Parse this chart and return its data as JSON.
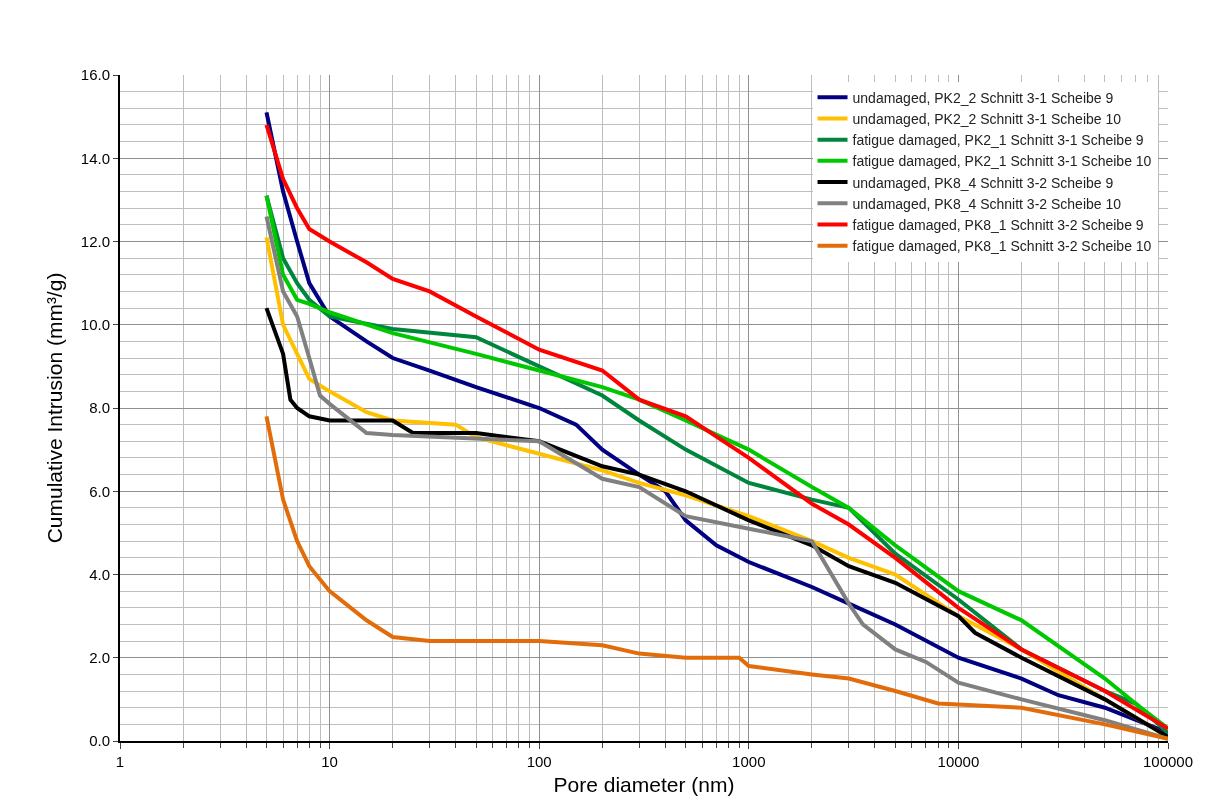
{
  "chart_data": {
    "type": "line",
    "xlabel": "Pore diameter (nm)",
    "ylabel": "Cumulative Intrusion (mm³/g)",
    "log": "x",
    "grid": true,
    "legend": "top right",
    "line_style": "solid",
    "marker": "none",
    "xlim": [
      1,
      100000
    ],
    "xticks": [
      1,
      10,
      100,
      1000,
      10000,
      100000
    ],
    "ylim": [
      0,
      16
    ],
    "yticks": [
      {
        "value": 0,
        "label": "0.0"
      },
      {
        "value": 2,
        "label": "2.0"
      },
      {
        "value": 4,
        "label": "4.0"
      },
      {
        "value": 6,
        "label": "6.0"
      },
      {
        "value": 8,
        "label": "8.0"
      },
      {
        "value": 10,
        "label": "10.0"
      },
      {
        "value": 12,
        "label": "12.0"
      },
      {
        "value": 14,
        "label": "14.0"
      },
      {
        "value": 16,
        "label": "16.0"
      }
    ],
    "series": [
      {
        "name": "undamaged, PK2_2 Schnitt 3-1 Scheibe 9",
        "color": "#000080",
        "x": [
          5,
          6,
          7,
          8,
          10,
          15,
          20,
          30,
          50,
          100,
          150,
          200,
          300,
          400,
          500,
          700,
          1000,
          2000,
          3000,
          5000,
          10000,
          20000,
          30000,
          50000,
          100000
        ],
        "values": [
          15.1,
          13.2,
          12.0,
          11.0,
          10.2,
          9.6,
          9.2,
          8.9,
          8.5,
          8.0,
          7.6,
          7.0,
          6.4,
          6.0,
          5.3,
          4.7,
          4.3,
          3.7,
          3.3,
          2.8,
          2.0,
          1.5,
          1.1,
          0.8,
          0.2
        ]
      },
      {
        "name": "undamaged, PK2_2 Schnitt 3-1 Scheibe 10",
        "color": "#ffc000",
        "x": [
          5,
          6,
          7,
          8,
          10,
          15,
          20,
          40,
          50,
          100,
          200,
          300,
          500,
          1000,
          2000,
          3000,
          5000,
          10000,
          20000,
          50000,
          100000
        ],
        "values": [
          12.1,
          10.0,
          9.3,
          8.7,
          8.4,
          7.9,
          7.7,
          7.6,
          7.3,
          6.9,
          6.5,
          6.2,
          5.9,
          5.4,
          4.8,
          4.4,
          4.0,
          3.0,
          2.2,
          1.0,
          0.1
        ]
      },
      {
        "name": "fatigue damaged, PK2_1 Schnitt 3-1 Scheibe 9",
        "color": "#00863c",
        "x": [
          5,
          6,
          7,
          8,
          10,
          20,
          50,
          100,
          200,
          300,
          500,
          1000,
          2000,
          3000,
          5000,
          10000,
          20000,
          50000,
          70000,
          100000
        ],
        "values": [
          13.1,
          11.6,
          11.0,
          10.6,
          10.2,
          9.9,
          9.7,
          9.0,
          8.3,
          7.7,
          7.0,
          6.2,
          5.8,
          5.6,
          4.5,
          3.4,
          2.2,
          1.2,
          0.9,
          0.2
        ]
      },
      {
        "name": "fatigue damaged, PK2_1 Schnitt 3-1 Scheibe 10",
        "color": "#00c800",
        "x": [
          5,
          6,
          7,
          8,
          10,
          20,
          50,
          100,
          200,
          300,
          500,
          1000,
          2000,
          3000,
          5000,
          10000,
          20000,
          50000,
          70000,
          100000
        ],
        "values": [
          13.1,
          11.2,
          10.6,
          10.5,
          10.3,
          9.8,
          9.3,
          8.9,
          8.5,
          8.2,
          7.7,
          7.0,
          6.1,
          5.6,
          4.7,
          3.6,
          2.9,
          1.5,
          0.9,
          0.3
        ]
      },
      {
        "name": "undamaged, PK8_4 Schnitt 3-2 Scheibe 9",
        "color": "#000000",
        "x": [
          5,
          6,
          6.5,
          7,
          8,
          10,
          20,
          25,
          50,
          100,
          200,
          300,
          500,
          1000,
          2000,
          3000,
          5000,
          10000,
          12000,
          20000,
          50000,
          100000
        ],
        "values": [
          10.4,
          9.3,
          8.2,
          8.0,
          7.8,
          7.7,
          7.7,
          7.4,
          7.4,
          7.2,
          6.6,
          6.4,
          6.0,
          5.3,
          4.7,
          4.2,
          3.8,
          3.0,
          2.6,
          2.0,
          1.0,
          0.1
        ]
      },
      {
        "name": "undamaged, PK8_4 Schnitt 3-2 Scheibe 10",
        "color": "#808080",
        "x": [
          5,
          6,
          7,
          8,
          9,
          10,
          15,
          20,
          100,
          200,
          300,
          500,
          1000,
          2000,
          3000,
          3500,
          5000,
          7000,
          10000,
          20000,
          50000,
          100000
        ],
        "values": [
          12.6,
          10.8,
          10.2,
          9.2,
          8.3,
          8.1,
          7.4,
          7.35,
          7.2,
          6.3,
          6.1,
          5.4,
          5.1,
          4.8,
          3.3,
          2.8,
          2.2,
          1.9,
          1.4,
          1.0,
          0.5,
          0.05
        ]
      },
      {
        "name": "fatigue damaged, PK8_1 Schnitt 3-2 Scheibe 9",
        "color": "#ff0000",
        "x": [
          5,
          6,
          7,
          8,
          10,
          15,
          20,
          30,
          50,
          100,
          200,
          300,
          500,
          1000,
          2000,
          3000,
          5000,
          10000,
          20000,
          50000,
          100000
        ],
        "values": [
          14.8,
          13.5,
          12.8,
          12.3,
          12.0,
          11.5,
          11.1,
          10.8,
          10.2,
          9.4,
          8.9,
          8.2,
          7.8,
          6.8,
          5.7,
          5.2,
          4.4,
          3.2,
          2.2,
          1.2,
          0.3
        ]
      },
      {
        "name": "fatigue damaged, PK8_1 Schnitt 3-2 Scheibe 10",
        "color": "#e36c0a",
        "x": [
          5,
          6,
          7,
          8,
          10,
          15,
          20,
          30,
          100,
          200,
          300,
          500,
          900,
          1000,
          2000,
          3000,
          5000,
          8000,
          20000,
          50000,
          100000
        ],
        "values": [
          7.8,
          5.8,
          4.8,
          4.2,
          3.6,
          2.9,
          2.5,
          2.4,
          2.4,
          2.3,
          2.1,
          2.0,
          2.0,
          1.8,
          1.6,
          1.5,
          1.2,
          0.9,
          0.8,
          0.4,
          0.05
        ]
      }
    ]
  }
}
